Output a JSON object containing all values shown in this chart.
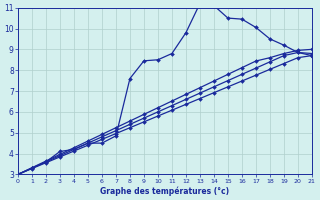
{
  "xlabel": "Graphe des températures (°c)",
  "bg_color": "#d4f0ee",
  "line_color": "#1a2a9c",
  "xlim": [
    0,
    21
  ],
  "ylim": [
    3,
    11
  ],
  "xticks": [
    0,
    1,
    2,
    3,
    4,
    5,
    6,
    7,
    8,
    9,
    10,
    11,
    12,
    13,
    14,
    15,
    16,
    17,
    18,
    19,
    20,
    21
  ],
  "yticks": [
    3,
    4,
    5,
    6,
    7,
    8,
    9,
    10,
    11
  ],
  "grid_color": "#b0d0cc",
  "curve1": {
    "x": [
      0,
      1,
      2,
      3,
      4,
      5,
      6,
      7,
      8,
      9,
      10,
      11,
      12,
      13,
      14,
      15,
      16,
      17,
      18,
      19,
      20,
      21
    ],
    "y": [
      3.0,
      3.3,
      3.6,
      4.1,
      4.2,
      4.5,
      4.5,
      4.85,
      7.6,
      8.45,
      8.5,
      8.8,
      9.8,
      11.2,
      11.1,
      10.5,
      10.45,
      10.05,
      9.5,
      9.2,
      8.85,
      8.7
    ],
    "has_markers": true
  },
  "curve2": {
    "x": [
      0,
      1,
      2,
      3,
      4,
      5,
      6,
      7,
      8,
      9,
      10,
      11,
      12,
      13,
      14,
      15,
      16,
      17,
      18,
      19,
      20,
      21
    ],
    "y": [
      3.0,
      3.28,
      3.56,
      3.84,
      4.12,
      4.4,
      4.68,
      4.96,
      5.24,
      5.52,
      5.8,
      6.08,
      6.36,
      6.64,
      6.92,
      7.2,
      7.48,
      7.76,
      8.04,
      8.32,
      8.6,
      8.7
    ],
    "has_markers": true
  },
  "curve3": {
    "x": [
      0,
      1,
      2,
      3,
      4,
      5,
      6,
      7,
      8,
      9,
      10,
      11,
      12,
      13,
      14,
      15,
      16,
      17,
      18,
      19,
      20,
      21
    ],
    "y": [
      3.0,
      3.3,
      3.6,
      3.9,
      4.2,
      4.5,
      4.8,
      5.1,
      5.4,
      5.7,
      6.0,
      6.3,
      6.6,
      6.9,
      7.2,
      7.5,
      7.8,
      8.1,
      8.4,
      8.7,
      8.85,
      8.8
    ],
    "has_markers": true
  },
  "curve4": {
    "x": [
      0,
      1,
      2,
      3,
      4,
      5,
      6,
      7,
      8,
      9,
      10,
      11,
      12,
      13,
      14,
      15,
      16,
      17,
      18,
      19,
      20,
      21
    ],
    "y": [
      3.0,
      3.32,
      3.64,
      3.96,
      4.28,
      4.6,
      4.92,
      5.24,
      5.56,
      5.88,
      6.2,
      6.52,
      6.84,
      7.16,
      7.48,
      7.8,
      8.12,
      8.44,
      8.6,
      8.8,
      8.95,
      9.0
    ],
    "has_markers": true
  }
}
